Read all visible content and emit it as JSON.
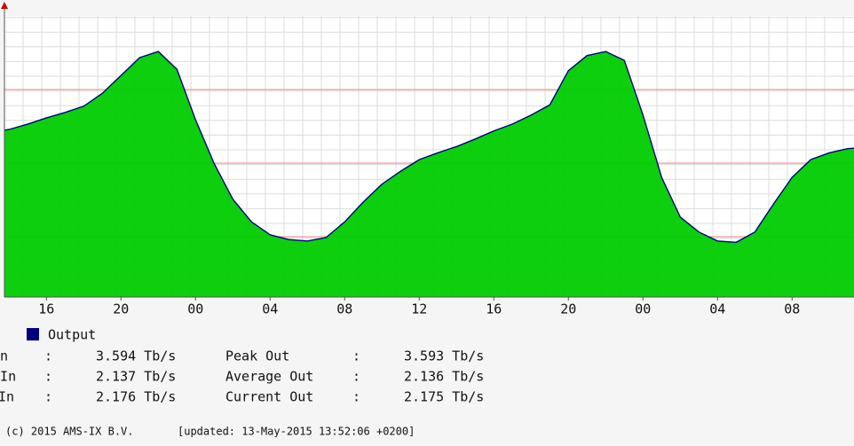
{
  "chart_data": {
    "type": "area",
    "x": [
      13.75,
      14,
      15,
      16,
      17,
      18,
      19,
      20,
      21,
      22,
      23,
      24,
      25,
      26,
      27,
      28,
      29,
      30,
      31,
      32,
      33,
      34,
      35,
      36,
      37,
      38,
      39,
      40,
      41,
      42,
      43,
      44,
      45,
      46,
      47,
      48,
      49,
      50,
      51,
      52,
      53,
      54,
      55,
      56,
      57,
      58,
      59,
      59.32
    ],
    "series": [
      {
        "name": null,
        "color": "#00cc00",
        "values": [
          2.44,
          2.45,
          2.53,
          2.62,
          2.7,
          2.79,
          2.98,
          3.24,
          3.5,
          3.59,
          3.33,
          2.59,
          1.95,
          1.43,
          1.1,
          0.91,
          0.84,
          0.82,
          0.87,
          1.1,
          1.39,
          1.65,
          1.84,
          2.01,
          2.11,
          2.2,
          2.31,
          2.43,
          2.53,
          2.66,
          2.81,
          3.31,
          3.53,
          3.59,
          3.46,
          2.66,
          1.75,
          1.17,
          0.95,
          0.82,
          0.8,
          0.95,
          1.36,
          1.75,
          2.01,
          2.11,
          2.17,
          2.175
        ]
      },
      {
        "name": "Output",
        "color": "#00007f",
        "values": [
          2.44,
          2.45,
          2.53,
          2.62,
          2.7,
          2.79,
          2.98,
          3.24,
          3.5,
          3.59,
          3.33,
          2.59,
          1.95,
          1.43,
          1.1,
          0.91,
          0.84,
          0.82,
          0.87,
          1.1,
          1.39,
          1.65,
          1.84,
          2.01,
          2.11,
          2.2,
          2.31,
          2.43,
          2.53,
          2.66,
          2.81,
          3.31,
          3.53,
          3.59,
          3.46,
          2.66,
          1.75,
          1.17,
          0.95,
          0.82,
          0.8,
          0.95,
          1.36,
          1.75,
          2.01,
          2.11,
          2.17,
          2.175
        ]
      }
    ],
    "xlim": [
      13.75,
      59.32
    ],
    "ylim": [
      0,
      4.11
    ],
    "xticks": [
      16,
      20,
      {
        "value": 24,
        "label": "00"
      },
      {
        "value": 28,
        "label": "04"
      },
      {
        "value": 32,
        "label": "08"
      },
      {
        "value": 36,
        "label": "12"
      },
      {
        "value": 40,
        "label": "16"
      },
      {
        "value": 44,
        "label": "20"
      },
      {
        "value": 48,
        "label": "00"
      },
      {
        "value": 52,
        "label": "04"
      },
      {
        "value": 56,
        "label": "08"
      }
    ]
  },
  "stats": {
    "rows": [
      {
        "in_label": "n",
        "in_value": "3.594 Tb/s",
        "out_label": "Peak Out",
        "out_value": "3.593 Tb/s"
      },
      {
        "in_label": "e In",
        "in_value": "2.137 Tb/s",
        "out_label": "Average Out",
        "out_value": "2.136 Tb/s"
      },
      {
        "in_label": "In",
        "in_value": "2.176 Tb/s",
        "out_label": "Current Out",
        "out_value": "2.175 Tb/s"
      }
    ]
  },
  "footer": {
    "copyright": "(c) 2015 AMS-IX B.V.",
    "updated": "[updated: 13-May-2015 13:52:06 +0200]"
  }
}
